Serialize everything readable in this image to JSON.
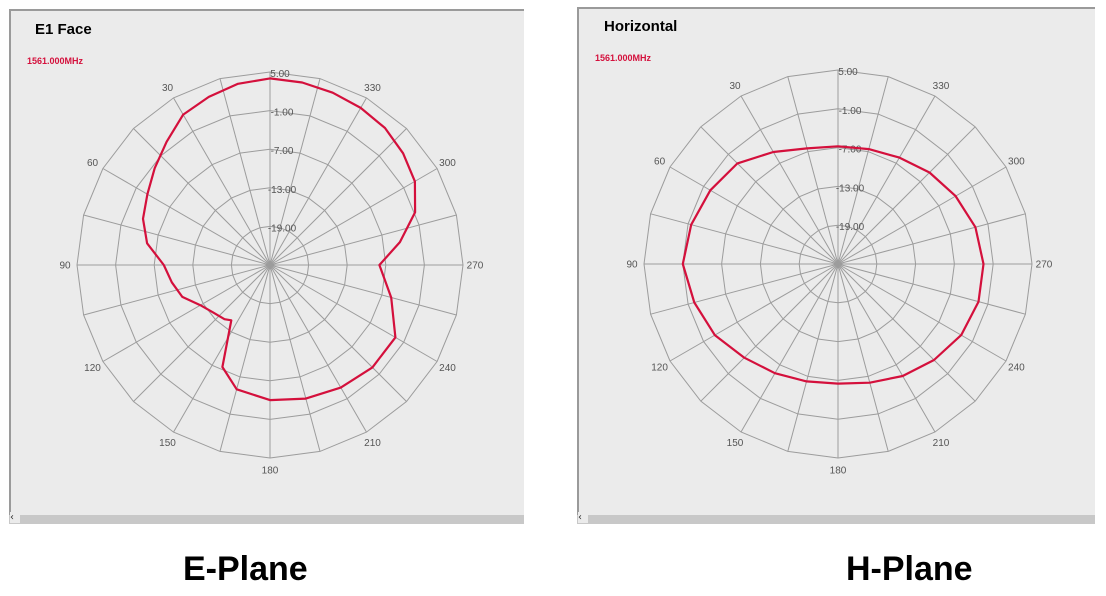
{
  "captions": {
    "left": "E-Plane",
    "right": "H-Plane"
  },
  "colors": {
    "trace": "#d4103c",
    "grid": "#9c9c9c",
    "label": "#555555",
    "panel": "#ebebeb"
  },
  "chart_data": [
    {
      "type": "polar-line",
      "title": "E1 Face",
      "series": [
        {
          "name": "1561.000MHz"
        }
      ],
      "r_ticks": [
        "5.00",
        "-1.00",
        "-7.00",
        "-13.00",
        "-19.00"
      ],
      "r_range": [
        -25,
        5
      ],
      "angle_ticks": [
        0,
        30,
        60,
        90,
        120,
        150,
        180,
        210,
        240,
        270,
        300,
        330
      ],
      "angle_labels": [
        "30",
        "60",
        "90",
        "120",
        "150",
        "180",
        "210",
        "240",
        "270",
        "300",
        "330"
      ],
      "angle_direction": "counterclockwise, 0 at top",
      "grid": true,
      "points": [
        [
          0,
          4.0
        ],
        [
          10,
          3.6
        ],
        [
          20,
          2.8
        ],
        [
          30,
          2.0
        ],
        [
          40,
          0.0
        ],
        [
          50,
          -1.6
        ],
        [
          60,
          -3.0
        ],
        [
          70,
          -4.0
        ],
        [
          80,
          -5.6
        ],
        [
          90,
          -8.5
        ],
        [
          100,
          -9.5
        ],
        [
          110,
          -10.5
        ],
        [
          120,
          -12.5
        ],
        [
          130,
          -13.5
        ],
        [
          140,
          -14.0
        ],
        [
          145,
          -14.5
        ],
        [
          155,
          -7.5
        ],
        [
          165,
          -5.0
        ],
        [
          180,
          -4.0
        ],
        [
          195,
          -3.5
        ],
        [
          210,
          -3.0
        ],
        [
          225,
          -2.5
        ],
        [
          240,
          -2.5
        ],
        [
          255,
          -5.5
        ],
        [
          270,
          -8.0
        ],
        [
          280,
          -4.5
        ],
        [
          290,
          -1.0
        ],
        [
          300,
          1.0
        ],
        [
          310,
          2.0
        ],
        [
          320,
          2.8
        ],
        [
          330,
          3.2
        ],
        [
          340,
          3.5
        ],
        [
          350,
          3.8
        ],
        [
          360,
          4.0
        ]
      ]
    },
    {
      "type": "polar-line",
      "title": "Horizontal",
      "series": [
        {
          "name": "1561.000MHz"
        }
      ],
      "r_ticks": [
        "5.00",
        "-1.00",
        "-7.00",
        "-13.00",
        "-19.00"
      ],
      "r_range": [
        -25,
        5
      ],
      "angle_ticks": [
        0,
        30,
        60,
        90,
        120,
        150,
        180,
        210,
        240,
        270,
        300,
        330
      ],
      "angle_labels": [
        "30",
        "60",
        "90",
        "120",
        "150",
        "180",
        "210",
        "240",
        "270",
        "300",
        "330"
      ],
      "angle_direction": "counterclockwise, 0 at top",
      "grid": true,
      "points": [
        [
          0,
          -6.8
        ],
        [
          15,
          -6.5
        ],
        [
          30,
          -5.0
        ],
        [
          45,
          -3.0
        ],
        [
          60,
          -2.2
        ],
        [
          75,
          -1.5
        ],
        [
          90,
          -1.0
        ],
        [
          105,
          -2.0
        ],
        [
          120,
          -3.0
        ],
        [
          135,
          -4.5
        ],
        [
          150,
          -5.5
        ],
        [
          165,
          -6.2
        ],
        [
          180,
          -6.5
        ],
        [
          195,
          -6.0
        ],
        [
          210,
          -5.0
        ],
        [
          225,
          -4.0
        ],
        [
          240,
          -3.0
        ],
        [
          255,
          -2.5
        ],
        [
          270,
          -2.5
        ],
        [
          285,
          -3.0
        ],
        [
          300,
          -4.0
        ],
        [
          315,
          -5.0
        ],
        [
          330,
          -6.0
        ],
        [
          345,
          -6.6
        ],
        [
          360,
          -6.8
        ]
      ]
    }
  ]
}
